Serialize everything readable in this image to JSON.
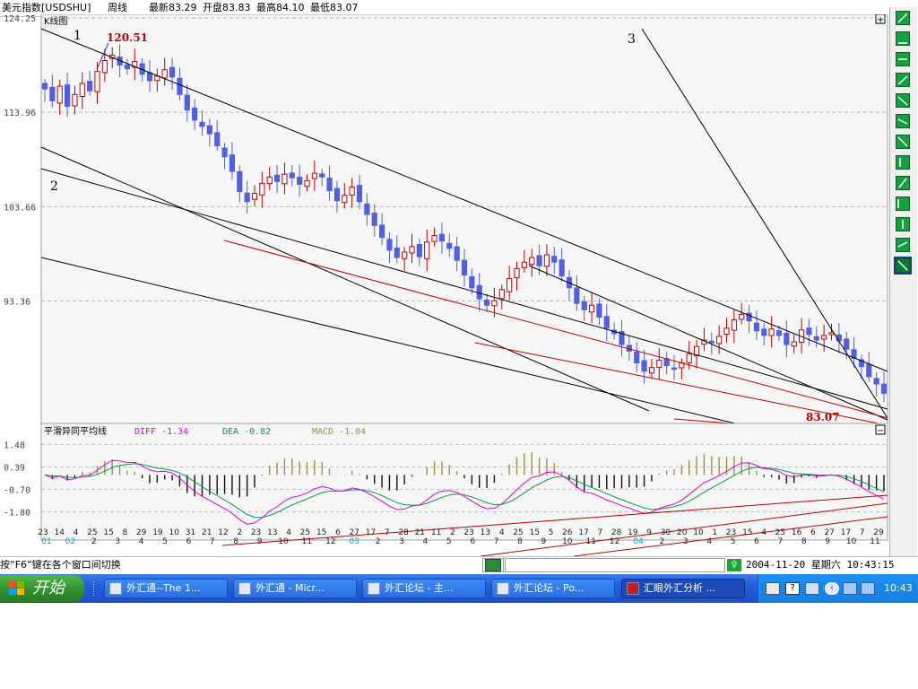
{
  "header": {
    "name": "美元指数[USDSHU]",
    "period": "周线",
    "latest": "最新83.29",
    "open": "开盘83.83",
    "high": "最高84.10",
    "low": "最低83.07"
  },
  "main_panel": {
    "title": "K线图",
    "expand_glyph": "+",
    "collapse_glyph": "−"
  },
  "annotations": {
    "label_1": "1",
    "label_2": "2",
    "label_3": "3",
    "high_value": "120.51",
    "low_value": "83.07"
  },
  "colors": {
    "up_candle": "#c00000",
    "down_candle": "#5060e0",
    "trend_black": "#000000",
    "trend_red": "#c00000",
    "diff": "#e000e0",
    "dea": "#00a040",
    "macd_pos": "#a09040",
    "macd_neg": "#101010",
    "annotation_red": "#c00000"
  },
  "indicator": {
    "title": "平滑异同平均线",
    "diff_label": "DIFF -1.34",
    "dea_label": "DEA -0.82",
    "macd_label": "MACD -1.04"
  },
  "status": {
    "hint": "按“F6”键在各个窗口间切换",
    "datetime": "2004-11-20 星期六 10:43:15"
  },
  "taskbar": {
    "start_label": "开始",
    "tasks": [
      {
        "label": "外汇通--The 1..."
      },
      {
        "label": "外汇通 - Micr..."
      },
      {
        "label": "外汇论坛 - 主..."
      },
      {
        "label": "外汇论坛 - Po..."
      },
      {
        "label": "汇眼外汇分析 ..."
      }
    ],
    "clock": "10:43"
  },
  "toolbar_icons": [
    "pointer-tool-icon",
    "triangle-tool-icon",
    "flat-line-tool-icon",
    "up-line-tool-icon",
    "down-line-tool-icon",
    "parallel-line-tool-icon",
    "cross-line-tool-icon",
    "vertical-bars-tool-icon",
    "fan-bars-tool-icon",
    "grid-bars-tool-icon",
    "fibo-bars-tool-icon",
    "channel-tool-icon",
    "delete-tool-icon"
  ],
  "chart_data": [
    {
      "type": "candlestick",
      "title": "K线图",
      "ylim": [
        80,
        124.25
      ],
      "yticks": [
        "124.25",
        "113.96",
        "103.66",
        "93.36"
      ],
      "ytick_values": [
        124.25,
        113.96,
        103.66,
        93.36
      ],
      "x_tick_labels": [
        "23",
        "14",
        "4",
        "25",
        "15",
        "8",
        "29",
        "19",
        "10",
        "31",
        "21",
        "12",
        "2",
        "23",
        "13",
        "4",
        "25",
        "15",
        "6",
        "27",
        "17",
        "7",
        "28",
        "21",
        "11",
        "2",
        "23",
        "13",
        "4",
        "25",
        "15",
        "5",
        "26",
        "17",
        "7",
        "28",
        "19",
        "9",
        "30",
        "20",
        "10",
        "1",
        "23",
        "15",
        "4",
        "25",
        "16",
        "6",
        "27",
        "17",
        "7",
        "29"
      ],
      "x_month_labels": [
        "01",
        "02",
        "2",
        "3",
        "4",
        "5",
        "6",
        "7",
        "8",
        "9",
        "10",
        "11",
        "12",
        "03",
        "2",
        "3",
        "4",
        "5",
        "6",
        "7",
        "8",
        "9",
        "10",
        "11",
        "12",
        "04",
        "2",
        "3",
        "4",
        "5",
        "6",
        "7",
        "8",
        "9",
        "10",
        "11"
      ],
      "closes": [
        116.5,
        115.2,
        116.8,
        114.6,
        115.9,
        117.1,
        116.3,
        118.4,
        119.6,
        120.2,
        119.1,
        118.7,
        119.5,
        118.1,
        117.4,
        117.9,
        118.6,
        117.8,
        115.9,
        114.2,
        113.1,
        112.4,
        111.6,
        110.3,
        109.1,
        107.5,
        105.3,
        104.2,
        105.1,
        106.2,
        106.9,
        106.4,
        107.2,
        106.8,
        106.1,
        106.5,
        107.3,
        106.9,
        105.4,
        104.3,
        104.9,
        105.8,
        104.2,
        102.8,
        101.6,
        100.3,
        98.9,
        98.1,
        98.7,
        99.3,
        98.2,
        99.8,
        100.5,
        99.9,
        99.1,
        97.8,
        96.2,
        94.8,
        93.6,
        92.9,
        93.4,
        94.6,
        95.8,
        96.9,
        97.6,
        98.1,
        97.2,
        98.4,
        97.6,
        96.1,
        94.8,
        93.1,
        92.4,
        92.9,
        91.6,
        90.4,
        89.8,
        88.6,
        87.9,
        86.6,
        85.7,
        86.1,
        86.9,
        86.3,
        85.9,
        86.6,
        87.6,
        88.4,
        89.1,
        88.8,
        89.5,
        90.4,
        91.3,
        91.9,
        91.2,
        90.1,
        89.6,
        90.3,
        89.6,
        88.6,
        88.9,
        90.2,
        89.7,
        89.1,
        89.6,
        89.9,
        89.0,
        88.1,
        87.1,
        86.2,
        85.1,
        84.3,
        83.29
      ],
      "trendlines": [
        {
          "name": "line-1",
          "label": "1",
          "color": "black"
        },
        {
          "name": "line-2",
          "label": "2",
          "color": "black"
        },
        {
          "name": "line-3",
          "label": "3",
          "color": "black"
        },
        {
          "name": "channel-upper",
          "color": "red"
        },
        {
          "name": "channel-lower",
          "color": "red"
        }
      ],
      "annotations": [
        {
          "text": "120.51",
          "kind": "high"
        },
        {
          "text": "83.07",
          "kind": "low"
        }
      ]
    },
    {
      "type": "bar",
      "title": "平滑异同平均线",
      "ylim": [
        -3.0,
        1.9
      ],
      "yticks": [
        "1.48",
        "0.39",
        "-0.70",
        "-1.80"
      ],
      "ytick_values": [
        1.48,
        0.39,
        -0.7,
        -1.8
      ],
      "series": [
        {
          "name": "DIFF",
          "last": -1.34
        },
        {
          "name": "DEA",
          "last": -0.82
        },
        {
          "name": "MACD",
          "last": -1.04
        }
      ]
    }
  ]
}
